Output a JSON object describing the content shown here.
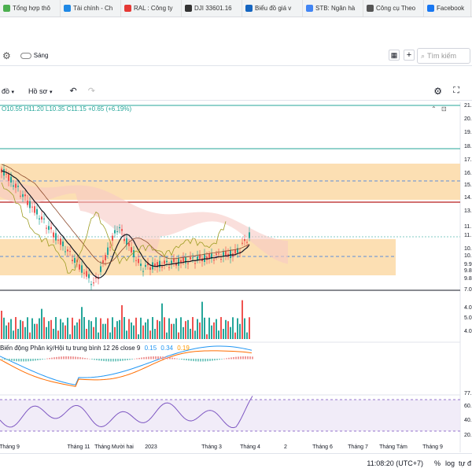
{
  "bookmarks": [
    {
      "label": "Tổng hợp thô",
      "color": "#4caf50"
    },
    {
      "label": "Tài chính - Ch",
      "color": "#1e88e5"
    },
    {
      "label": "RAL : Công ty",
      "color": "#e53935"
    },
    {
      "label": "DJI 33601.16",
      "color": "#333333"
    },
    {
      "label": "Biểu đồ giá v",
      "color": "#1565c0"
    },
    {
      "label": "STB: Ngân hà",
      "color": "#4285f4"
    },
    {
      "label": "Công cụ Theo",
      "color": "#555555"
    },
    {
      "label": "Facebook",
      "color": "#1877f2"
    }
  ],
  "topbar": {
    "theme_label": "Sáng",
    "search_placeholder": "Tìm kiếm"
  },
  "toolbar": {
    "interval_label": "đồ",
    "profile_label": "Hồ sơ"
  },
  "legend": {
    "ohlc": "O10.55 H11.20 L10.35 C11.15 +0.65 (+6.19%)"
  },
  "macd_label": "Biến động Phân kỳ/Hội tụ trung bình 12 26 close 9",
  "macd_values": [
    "0.15",
    "0.34",
    "0.19"
  ],
  "x_ticks": [
    {
      "label": "Tháng 9",
      "x": 12
    },
    {
      "label": "Tháng 11",
      "x": 100
    },
    {
      "label": "Tháng Mười hai",
      "x": 145
    },
    {
      "label": "2023",
      "x": 192
    },
    {
      "label": "Tháng 3",
      "x": 269
    },
    {
      "label": "Tháng 4",
      "x": 318
    },
    {
      "label": "2",
      "x": 363
    },
    {
      "label": "Tháng 6",
      "x": 410
    },
    {
      "label": "Tháng 7",
      "x": 455
    },
    {
      "label": "Tháng Tám",
      "x": 500
    },
    {
      "label": "Tháng 9",
      "x": 550
    }
  ],
  "price_ticks": [
    "21.",
    "20.",
    "19.",
    "18.",
    "17.",
    "16.",
    "15.",
    "14.",
    "13.",
    "11.",
    "11.",
    "10.",
    "10.",
    "9.9",
    "9.8",
    "9.8",
    "7.0"
  ],
  "volume_ticks": [
    "4.0",
    "5.0",
    "4.0"
  ],
  "rsi_ticks": [
    "77.",
    "60.",
    "40.",
    "20."
  ],
  "bottom": {
    "time": "11:08:20 (UTC+7)",
    "percent": "%",
    "log": "log",
    "auto": "tự đ"
  },
  "colors": {
    "up": "#26a69a",
    "down": "#ef5350",
    "zone": "#fcd9a6",
    "cloud": "#f6c9c4"
  }
}
